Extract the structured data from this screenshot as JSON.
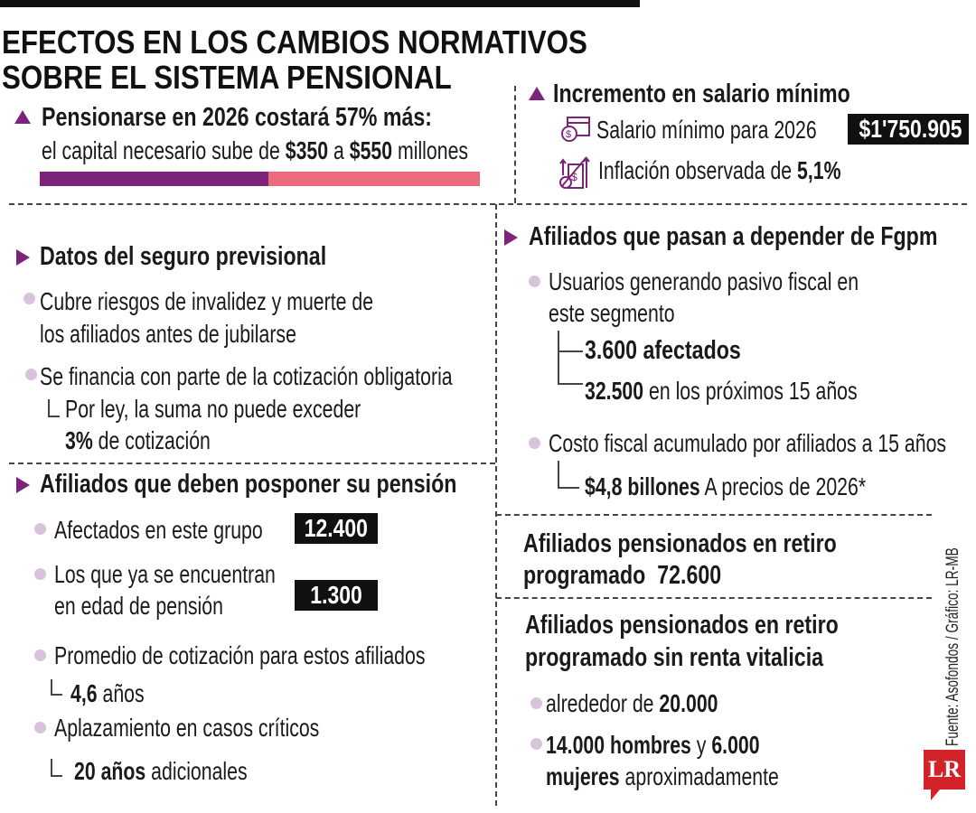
{
  "colors": {
    "accent": "#7b2479",
    "bar_before": "#7b2479",
    "bar_after": "#eb6b7e",
    "bullet": "#d9c3dc",
    "logo": "#d2232a"
  },
  "title": {
    "line1": "EFECTOS EN LOS CAMBIOS NORMATIVOS",
    "line2": "SOBRE EL SISTEMA PENSIONAL"
  },
  "pension_cost": {
    "heading": "Pensionarse en 2026 costará 57% más:",
    "sub_a": "el capital necesario sube de ",
    "v1": "$350",
    "sub_b": " a ",
    "v2": "$550",
    "sub_c": " millones",
    "bar": {
      "from": 350,
      "to": 550
    }
  },
  "salary": {
    "heading": "Incremento en salario mínimo",
    "min_label": "Salario mínimo para 2026",
    "min_value": "$1'750.905",
    "infl_label": "Inflación observada de ",
    "infl_value": "5,1%",
    "icons": [
      "salary-calendar-icon",
      "inflation-icon"
    ]
  },
  "insurance": {
    "heading": "Datos del seguro previsional",
    "b1_l1": "Cubre riesgos de invalidez y muerte de",
    "b1_l2": "los afiliados antes de jubilarse",
    "b2": "Se financia con parte de la cotización obligatoria",
    "b2_sub1": "Por ley, la suma no puede exceder",
    "b2_sub2_bold": "3%",
    "b2_sub2": " de cotización"
  },
  "postpone": {
    "heading": "Afiliados que deben posponer su pensión",
    "b1": "Afectados en este grupo",
    "b1_value": "12.400",
    "b2_l1": "Los que ya se encuentran",
    "b2_l2": "en edad de pensión",
    "b2_value": "1.300",
    "b3": "Promedio de cotización para estos afiliados",
    "b3_bold": "4,6",
    "b3_rest": " años",
    "b4": "Aplazamiento en casos críticos",
    "b4_bold": "20 años",
    "b4_rest": " adicionales"
  },
  "fgpm": {
    "heading": "Afiliados que pasan a depender de Fgpm",
    "b1_l1": "Usuarios generando pasivo fiscal en",
    "b1_l2": "este segmento",
    "s1": "3.600 afectados",
    "s2_bold": "32.500",
    "s2_rest": " en los próximos 15 años",
    "b2": "Costo fiscal acumulado por afiliados a 15 años",
    "s3_bold": "$4,8 billones",
    "s3_rest": " A precios de 2026*"
  },
  "retiro": {
    "l1": "Afiliados pensionados en retiro",
    "l2": "programado",
    "value": "72.600"
  },
  "sin_renta": {
    "l1": "Afiliados pensionados en retiro",
    "l2": "programado sin renta vitalicia",
    "b1": "alrededor de ",
    "b1_bold": "20.000",
    "b2_bold1": "14.000 hombres",
    "b2_mid": " y ",
    "b2_bold2": "6.000",
    "b2_bold3": "mujeres",
    "b2_rest": " aproximadamente"
  },
  "source": "Fuente: Asofondos  / Gráfico: LR-MB",
  "logo": "LR"
}
